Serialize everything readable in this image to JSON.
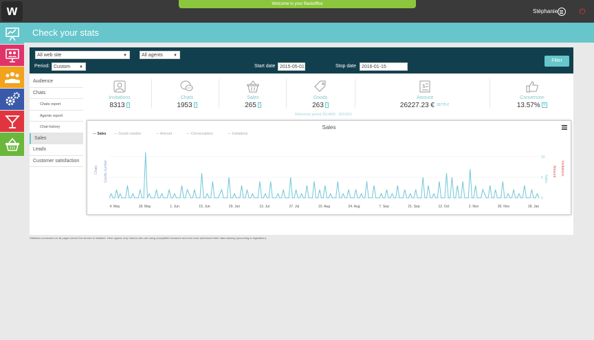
{
  "topbar": {
    "logo": "w",
    "welcome": "Welcome to your Backoffice",
    "user_name": "Stéphanie"
  },
  "title": "Check your stats",
  "filters": {
    "website": "All web site",
    "agents": "All agents",
    "period_label": "Period:",
    "period": "Custom",
    "start_label": "Start date",
    "start_date": "2015-05-01",
    "stop_label": "Stop date",
    "stop_date": "2016-01-15",
    "filter_button": "Filter"
  },
  "menu": [
    {
      "label": "Audience",
      "sub": false,
      "active": false
    },
    {
      "label": "Chats",
      "sub": false,
      "active": false
    },
    {
      "label": "Chats report",
      "sub": true,
      "active": false
    },
    {
      "label": "Agents report",
      "sub": true,
      "active": false
    },
    {
      "label": "Chat history",
      "sub": true,
      "active": false
    },
    {
      "label": "Sales",
      "sub": false,
      "active": true
    },
    {
      "label": "Leads",
      "sub": false,
      "active": false
    },
    {
      "label": "Customer satisfaction",
      "sub": false,
      "active": false
    }
  ],
  "stats": [
    {
      "icon": "user-icon",
      "label": "Invitations",
      "value": "8313",
      "badge": "i"
    },
    {
      "icon": "chat-bubbles-icon",
      "label": "Chats",
      "value": "1953",
      "badge": "i"
    },
    {
      "icon": "basket-icon",
      "label": "Sales",
      "value": "265",
      "badge": "i"
    },
    {
      "icon": "tag-icon",
      "label": "Goods",
      "value": "263",
      "badge": "i"
    },
    {
      "icon": "receipt-icon",
      "label": "Amount",
      "value": "26227.23 €",
      "badge": "26775 €"
    },
    {
      "icon": "thumbs-up-icon",
      "label": "Conversion",
      "value": "13.57%",
      "badge": "%"
    }
  ],
  "reference_period": "Reference period 2014/8/5 - 2015/5/1",
  "chart": {
    "title": "Sales",
    "legend": [
      "Sales",
      "Goods number",
      "Amount",
      "Conversations",
      "Invitations"
    ],
    "left_axis_labels": [
      "Chats",
      "Goods number"
    ],
    "right_axis_labels": [
      "Sales",
      "Amount",
      "Invitations"
    ],
    "right_ticks": [
      "10",
      "5",
      "0"
    ]
  },
  "chart_data": {
    "type": "line",
    "title": "Sales",
    "x_tick_labels": [
      "4. May",
      "18. May",
      "1. Jun",
      "15. Jun",
      "29. Jun",
      "13. Jul",
      "27. Jul",
      "10. Aug",
      "24. Aug",
      "7. Sep",
      "21. Sep",
      "12. Oct",
      "2. Nov",
      "30. Nov",
      "18. Jan"
    ],
    "series": [
      {
        "name": "Sales",
        "color": "#6fc6d6",
        "values": [
          0,
          1,
          0,
          0,
          2,
          0,
          1,
          0,
          0,
          0,
          3,
          0,
          0,
          1,
          0,
          0,
          0,
          2,
          0,
          0,
          11,
          0,
          1,
          0,
          0,
          0,
          2,
          0,
          0,
          1,
          0,
          0,
          0,
          2,
          0,
          0,
          1,
          0,
          0,
          0,
          3,
          0,
          0,
          2,
          1,
          0,
          0,
          2,
          0,
          0,
          0,
          6,
          0,
          0,
          1,
          0,
          0,
          4,
          0,
          0,
          0,
          1,
          2,
          0,
          0,
          0,
          5,
          0,
          0,
          1,
          0,
          0,
          0,
          3,
          0,
          0,
          2,
          0,
          0,
          1,
          0,
          0,
          0,
          4,
          0,
          0,
          1,
          0,
          0,
          4,
          0,
          0,
          0,
          1,
          0,
          0,
          2,
          0,
          0,
          0,
          5,
          0,
          0,
          2,
          0,
          0,
          1,
          0,
          0,
          3,
          0,
          0,
          0,
          4,
          0,
          0,
          2,
          0,
          0,
          3,
          0,
          0,
          1,
          0,
          0,
          0,
          4,
          0,
          0,
          1,
          0,
          0,
          2,
          0,
          0,
          0,
          2,
          0,
          0,
          1,
          0,
          0,
          4,
          0,
          0,
          0,
          3,
          0,
          0,
          0,
          1,
          0,
          0,
          2,
          0,
          0,
          1,
          0,
          0,
          3,
          0,
          0,
          0,
          2,
          0,
          0,
          1,
          0,
          0,
          2,
          0,
          0,
          0,
          5,
          0,
          0,
          3,
          0,
          0,
          1,
          0,
          0,
          4,
          0,
          0,
          0,
          6,
          0,
          0,
          5,
          0,
          0,
          3,
          0,
          0,
          4,
          0,
          0,
          0,
          7,
          0,
          0,
          3,
          0,
          0,
          0,
          2,
          1,
          0,
          0,
          3,
          0,
          0,
          2,
          0,
          0,
          0,
          4,
          0,
          0,
          1,
          0,
          0,
          2,
          0,
          0,
          1,
          0,
          0,
          3,
          0,
          0,
          0,
          2,
          0,
          0,
          1,
          0
        ]
      }
    ],
    "y_right_ticks": [
      0,
      5,
      10
    ]
  },
  "footnote": "Statistics conducted on all pages where the service is installed. Here appear only visitors who are using compatible browsers and who have authorized their data tracking (according to legislation)."
}
